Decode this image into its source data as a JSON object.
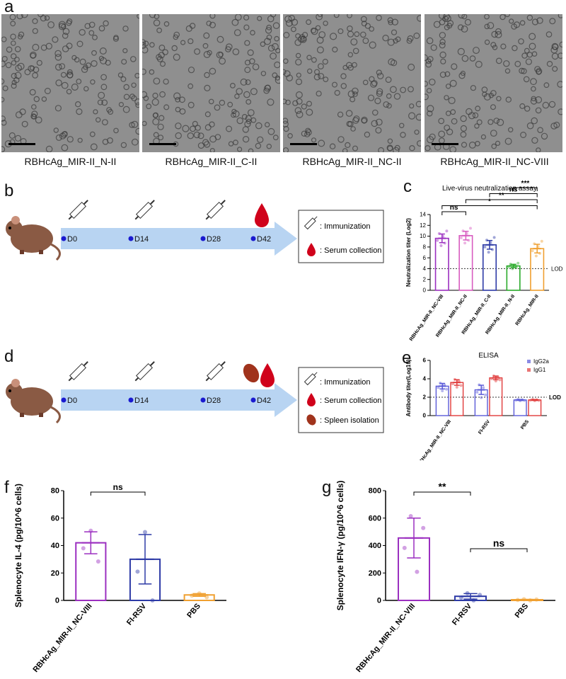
{
  "panel_labels": {
    "a": "a",
    "b": "b",
    "c": "c",
    "d": "d",
    "e": "e",
    "f": "f",
    "g": "g"
  },
  "micrographs": [
    {
      "caption": "RBHcAg_MIR-II_N-II"
    },
    {
      "caption": "RBHcAg_MIR-II_C-II"
    },
    {
      "caption": "RBHcAg_MIR-II_NC-II"
    },
    {
      "caption": "RBHcAg_MIR-II_NC-VIII"
    }
  ],
  "timeline_b": {
    "days": [
      "D0",
      "D14",
      "D28",
      "D42"
    ],
    "legend": [
      {
        "icon": "syringe-icon",
        "label": ": Immunization"
      },
      {
        "icon": "blood-drop-icon",
        "label": ": Serum collection"
      }
    ]
  },
  "timeline_d": {
    "days": [
      "D0",
      "D14",
      "D28",
      "D42"
    ],
    "legend": [
      {
        "icon": "syringe-icon",
        "label": ": Immunization"
      },
      {
        "icon": "blood-drop-icon",
        "label": ": Serum collection"
      },
      {
        "icon": "spleen-icon",
        "label": ": Spleen isolation"
      }
    ]
  },
  "chart_data": [
    {
      "id": "c",
      "type": "bar",
      "title": "Live-virus neutralization assay",
      "ylabel": "Neutralization titer (Log2)",
      "ylim": [
        0,
        14
      ],
      "yticks": [
        0,
        2,
        4,
        6,
        8,
        10,
        12,
        14
      ],
      "categories": [
        "RBHcAg_MIR-II_NC-VIII",
        "RBHcAg_MIR-II_NC-II",
        "RBHcAg_MIR-II_C-II",
        "RBHcAg_MIR-II_N-II",
        "RBHcAg_MIR-II"
      ],
      "values": [
        9.6,
        10.1,
        8.4,
        4.5,
        7.7
      ],
      "errors": [
        0.8,
        0.8,
        0.8,
        0.3,
        0.8
      ],
      "colors": [
        "#9b2fc0",
        "#d85cc0",
        "#2d3aa6",
        "#2aaa2a",
        "#f0a030"
      ],
      "lod": {
        "value": 4.0,
        "label": "LOD"
      },
      "significance": [
        {
          "from": 0,
          "to": 1,
          "label": "ns"
        },
        {
          "from": 0,
          "to": 4,
          "label": "*"
        },
        {
          "from": 1,
          "to": 4,
          "label": "**"
        },
        {
          "from": 2,
          "to": 4,
          "label": "ns"
        },
        {
          "from": 3,
          "to": 4,
          "label": "***"
        }
      ]
    },
    {
      "id": "e",
      "type": "bar",
      "title": "ELISA",
      "ylabel": "Antibody titer(Log10)",
      "ylim": [
        0,
        6
      ],
      "yticks": [
        0,
        2,
        4,
        6
      ],
      "categories": [
        "RBHcAg_MIR-II_NC-VIII",
        "FI-RSV",
        "PBS"
      ],
      "series": [
        {
          "name": "IgG2a",
          "values": [
            3.2,
            2.8,
            1.7
          ],
          "errors": [
            0.3,
            0.5,
            0.05
          ],
          "color": "#5a5ad8"
        },
        {
          "name": "IgG1",
          "values": [
            3.6,
            4.1,
            1.7
          ],
          "errors": [
            0.3,
            0.2,
            0.05
          ],
          "color": "#e03a3a"
        }
      ],
      "lod": {
        "value": 2.0,
        "label": "LOD"
      },
      "legend": "top-right"
    },
    {
      "id": "f",
      "type": "bar",
      "title": "",
      "ylabel": "Splenocyte IL-4 (pg/10^6 cells)",
      "ylim": [
        0,
        80
      ],
      "yticks": [
        0,
        20,
        40,
        60,
        80
      ],
      "categories": [
        "RBHcAg_MIR-II_NC-VIII",
        "FI-RSV",
        "PBS"
      ],
      "values": [
        42,
        30,
        4
      ],
      "errors": [
        8,
        18,
        1
      ],
      "colors": [
        "#9b2fc0",
        "#2d3aa6",
        "#f0a030"
      ],
      "significance": [
        {
          "from": 0,
          "to": 1,
          "label": "ns"
        }
      ]
    },
    {
      "id": "g",
      "type": "bar",
      "title": "",
      "ylabel": "Splenocyte IFN-γ (pg/10^6 cells)",
      "ylim": [
        0,
        800
      ],
      "yticks": [
        0,
        200,
        400,
        600,
        800
      ],
      "categories": [
        "RBHcAg_MIR-II_NC-VIII",
        "FI-RSV",
        "PBS"
      ],
      "values": [
        455,
        30,
        5
      ],
      "errors": [
        145,
        20,
        3
      ],
      "colors": [
        "#9b2fc0",
        "#2d3aa6",
        "#f0a030"
      ],
      "significance": [
        {
          "from": 0,
          "to": 1,
          "label": "**"
        },
        {
          "from": 1,
          "to": 2,
          "label": "ns"
        }
      ]
    }
  ]
}
